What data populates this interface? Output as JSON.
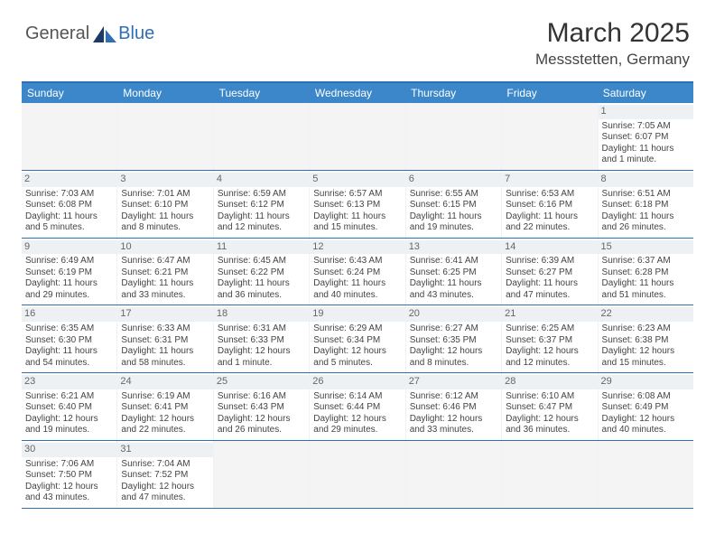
{
  "logo": {
    "partA": "General",
    "partB": "Blue"
  },
  "title": "March 2025",
  "location": "Messstetten, Germany",
  "colors": {
    "header_bg": "#3c87c9",
    "border": "#2e6fb5",
    "daynum_bg": "#eef1f3",
    "empty_bg": "#f4f4f4",
    "text": "#444444"
  },
  "columns": [
    "Sunday",
    "Monday",
    "Tuesday",
    "Wednesday",
    "Thursday",
    "Friday",
    "Saturday"
  ],
  "weeks": [
    [
      null,
      null,
      null,
      null,
      null,
      null,
      {
        "n": "1",
        "sr": "Sunrise: 7:05 AM",
        "ss": "Sunset: 6:07 PM",
        "dl": "Daylight: 11 hours and 1 minute."
      }
    ],
    [
      {
        "n": "2",
        "sr": "Sunrise: 7:03 AM",
        "ss": "Sunset: 6:08 PM",
        "dl": "Daylight: 11 hours and 5 minutes."
      },
      {
        "n": "3",
        "sr": "Sunrise: 7:01 AM",
        "ss": "Sunset: 6:10 PM",
        "dl": "Daylight: 11 hours and 8 minutes."
      },
      {
        "n": "4",
        "sr": "Sunrise: 6:59 AM",
        "ss": "Sunset: 6:12 PM",
        "dl": "Daylight: 11 hours and 12 minutes."
      },
      {
        "n": "5",
        "sr": "Sunrise: 6:57 AM",
        "ss": "Sunset: 6:13 PM",
        "dl": "Daylight: 11 hours and 15 minutes."
      },
      {
        "n": "6",
        "sr": "Sunrise: 6:55 AM",
        "ss": "Sunset: 6:15 PM",
        "dl": "Daylight: 11 hours and 19 minutes."
      },
      {
        "n": "7",
        "sr": "Sunrise: 6:53 AM",
        "ss": "Sunset: 6:16 PM",
        "dl": "Daylight: 11 hours and 22 minutes."
      },
      {
        "n": "8",
        "sr": "Sunrise: 6:51 AM",
        "ss": "Sunset: 6:18 PM",
        "dl": "Daylight: 11 hours and 26 minutes."
      }
    ],
    [
      {
        "n": "9",
        "sr": "Sunrise: 6:49 AM",
        "ss": "Sunset: 6:19 PM",
        "dl": "Daylight: 11 hours and 29 minutes."
      },
      {
        "n": "10",
        "sr": "Sunrise: 6:47 AM",
        "ss": "Sunset: 6:21 PM",
        "dl": "Daylight: 11 hours and 33 minutes."
      },
      {
        "n": "11",
        "sr": "Sunrise: 6:45 AM",
        "ss": "Sunset: 6:22 PM",
        "dl": "Daylight: 11 hours and 36 minutes."
      },
      {
        "n": "12",
        "sr": "Sunrise: 6:43 AM",
        "ss": "Sunset: 6:24 PM",
        "dl": "Daylight: 11 hours and 40 minutes."
      },
      {
        "n": "13",
        "sr": "Sunrise: 6:41 AM",
        "ss": "Sunset: 6:25 PM",
        "dl": "Daylight: 11 hours and 43 minutes."
      },
      {
        "n": "14",
        "sr": "Sunrise: 6:39 AM",
        "ss": "Sunset: 6:27 PM",
        "dl": "Daylight: 11 hours and 47 minutes."
      },
      {
        "n": "15",
        "sr": "Sunrise: 6:37 AM",
        "ss": "Sunset: 6:28 PM",
        "dl": "Daylight: 11 hours and 51 minutes."
      }
    ],
    [
      {
        "n": "16",
        "sr": "Sunrise: 6:35 AM",
        "ss": "Sunset: 6:30 PM",
        "dl": "Daylight: 11 hours and 54 minutes."
      },
      {
        "n": "17",
        "sr": "Sunrise: 6:33 AM",
        "ss": "Sunset: 6:31 PM",
        "dl": "Daylight: 11 hours and 58 minutes."
      },
      {
        "n": "18",
        "sr": "Sunrise: 6:31 AM",
        "ss": "Sunset: 6:33 PM",
        "dl": "Daylight: 12 hours and 1 minute."
      },
      {
        "n": "19",
        "sr": "Sunrise: 6:29 AM",
        "ss": "Sunset: 6:34 PM",
        "dl": "Daylight: 12 hours and 5 minutes."
      },
      {
        "n": "20",
        "sr": "Sunrise: 6:27 AM",
        "ss": "Sunset: 6:35 PM",
        "dl": "Daylight: 12 hours and 8 minutes."
      },
      {
        "n": "21",
        "sr": "Sunrise: 6:25 AM",
        "ss": "Sunset: 6:37 PM",
        "dl": "Daylight: 12 hours and 12 minutes."
      },
      {
        "n": "22",
        "sr": "Sunrise: 6:23 AM",
        "ss": "Sunset: 6:38 PM",
        "dl": "Daylight: 12 hours and 15 minutes."
      }
    ],
    [
      {
        "n": "23",
        "sr": "Sunrise: 6:21 AM",
        "ss": "Sunset: 6:40 PM",
        "dl": "Daylight: 12 hours and 19 minutes."
      },
      {
        "n": "24",
        "sr": "Sunrise: 6:19 AM",
        "ss": "Sunset: 6:41 PM",
        "dl": "Daylight: 12 hours and 22 minutes."
      },
      {
        "n": "25",
        "sr": "Sunrise: 6:16 AM",
        "ss": "Sunset: 6:43 PM",
        "dl": "Daylight: 12 hours and 26 minutes."
      },
      {
        "n": "26",
        "sr": "Sunrise: 6:14 AM",
        "ss": "Sunset: 6:44 PM",
        "dl": "Daylight: 12 hours and 29 minutes."
      },
      {
        "n": "27",
        "sr": "Sunrise: 6:12 AM",
        "ss": "Sunset: 6:46 PM",
        "dl": "Daylight: 12 hours and 33 minutes."
      },
      {
        "n": "28",
        "sr": "Sunrise: 6:10 AM",
        "ss": "Sunset: 6:47 PM",
        "dl": "Daylight: 12 hours and 36 minutes."
      },
      {
        "n": "29",
        "sr": "Sunrise: 6:08 AM",
        "ss": "Sunset: 6:49 PM",
        "dl": "Daylight: 12 hours and 40 minutes."
      }
    ],
    [
      {
        "n": "30",
        "sr": "Sunrise: 7:06 AM",
        "ss": "Sunset: 7:50 PM",
        "dl": "Daylight: 12 hours and 43 minutes."
      },
      {
        "n": "31",
        "sr": "Sunrise: 7:04 AM",
        "ss": "Sunset: 7:52 PM",
        "dl": "Daylight: 12 hours and 47 minutes."
      },
      null,
      null,
      null,
      null,
      null
    ]
  ]
}
